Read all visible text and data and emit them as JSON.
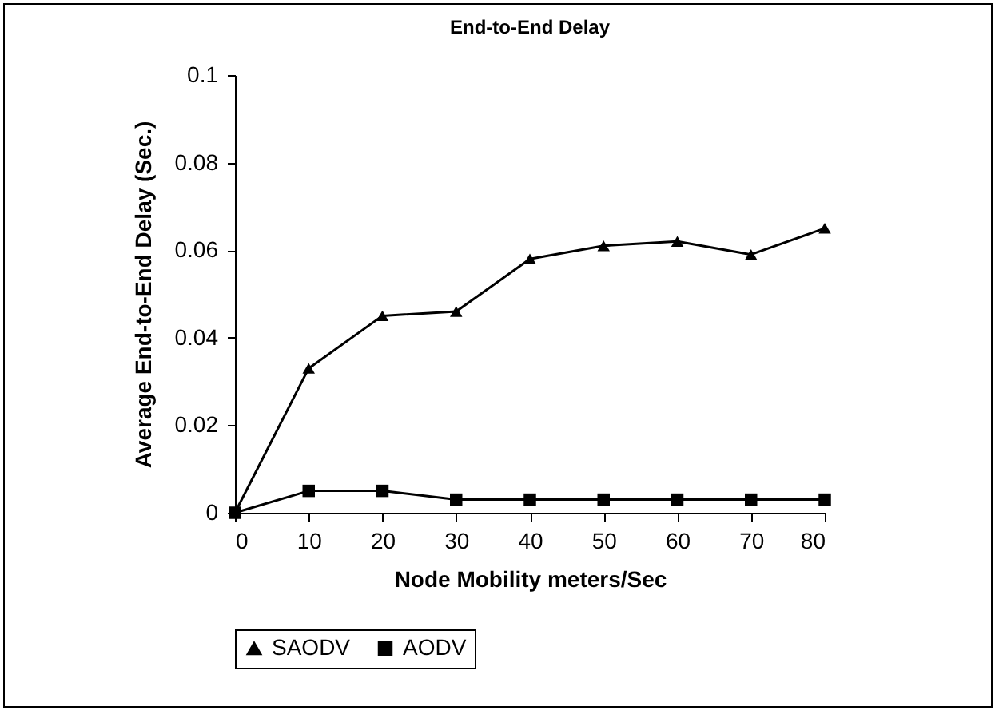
{
  "chart_data": {
    "type": "line",
    "title": "End-to-End Delay",
    "xlabel": "Node Mobility meters/Sec",
    "ylabel": "Average End-to-End Delay (Sec.)",
    "x": [
      0,
      10,
      20,
      30,
      40,
      50,
      60,
      70,
      80
    ],
    "series": [
      {
        "name": "SAODV",
        "color": "#000000",
        "marker": "triangle",
        "values": [
          0,
          0.033,
          0.045,
          0.046,
          0.058,
          0.061,
          0.062,
          0.059,
          0.065
        ]
      },
      {
        "name": "AODV",
        "color": "#000000",
        "marker": "square",
        "values": [
          0,
          0.005,
          0.005,
          0.003,
          0.003,
          0.003,
          0.003,
          0.003,
          0.003
        ]
      }
    ],
    "xlim": [
      0,
      80
    ],
    "xticks": [
      0,
      10,
      20,
      30,
      40,
      50,
      60,
      70,
      80
    ],
    "ylim": [
      0,
      0.1
    ],
    "yticks": [
      {
        "value": 0,
        "label": "0"
      },
      0.02,
      0.04,
      0.06,
      0.08,
      {
        "value": 0.1,
        "label": "0.1"
      }
    ],
    "grid": false,
    "legend": "bottom",
    "line_style": "solid"
  }
}
